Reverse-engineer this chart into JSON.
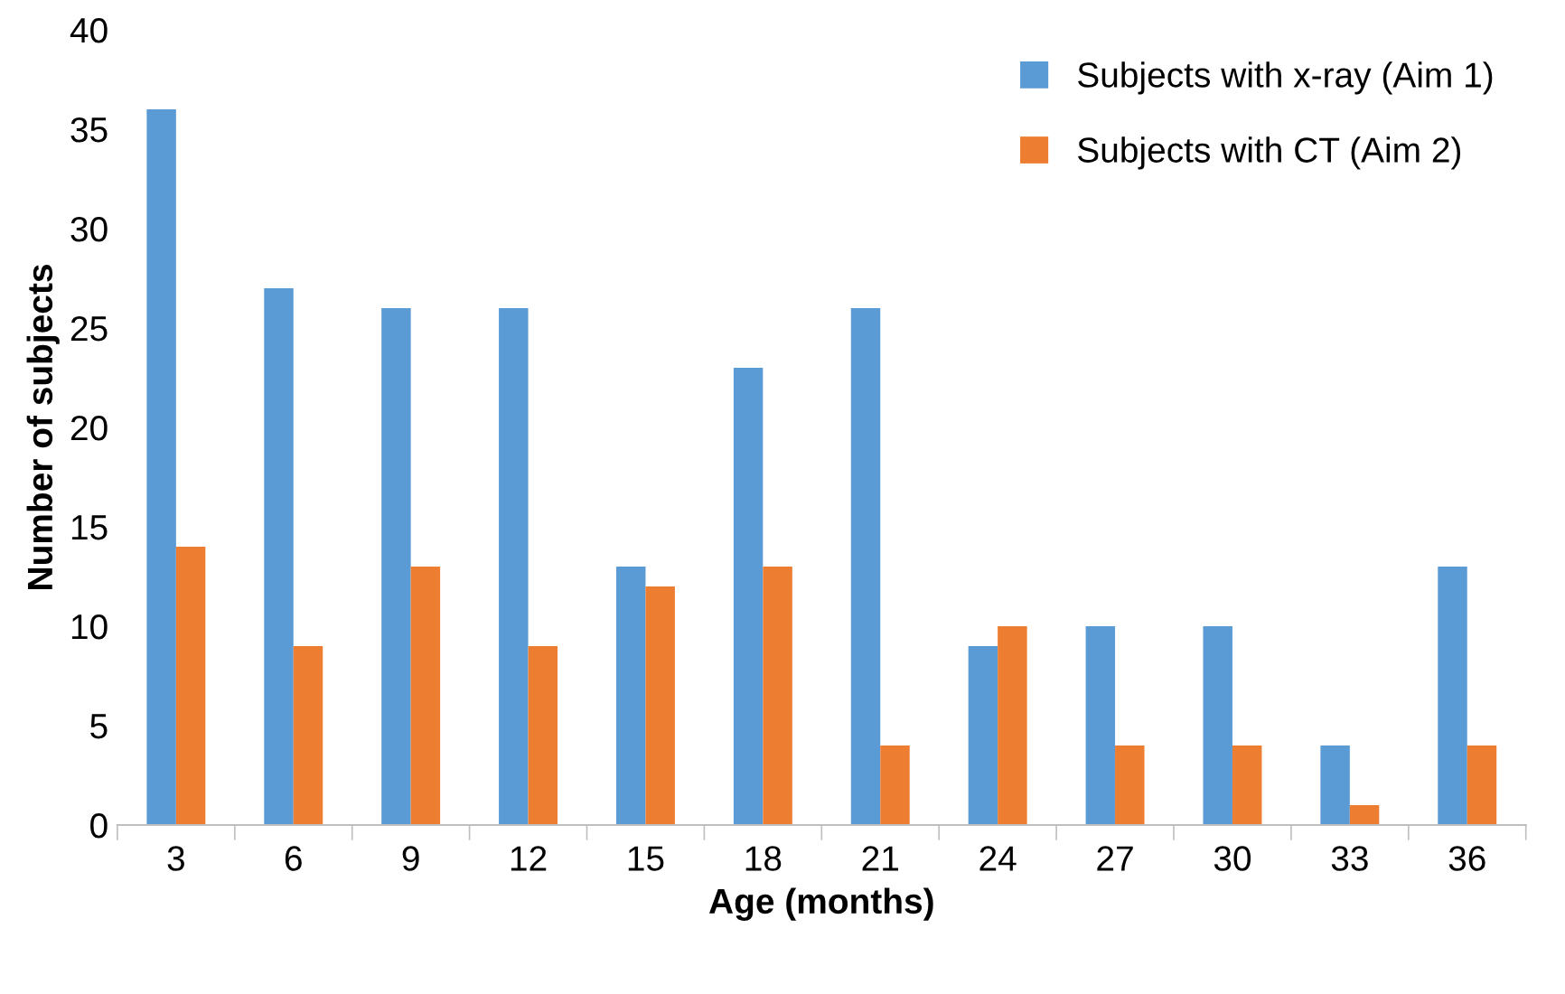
{
  "chart_data": {
    "type": "bar",
    "xlabel": "Age (months)",
    "ylabel": "Number of subjects",
    "categories": [
      "3",
      "6",
      "9",
      "12",
      "15",
      "18",
      "21",
      "24",
      "27",
      "30",
      "33",
      "36"
    ],
    "series": [
      {
        "name": "Subjects with x-ray (Aim 1)",
        "color": "#5b9bd5",
        "values": [
          36,
          27,
          26,
          26,
          13,
          23,
          26,
          9,
          10,
          10,
          4,
          13
        ]
      },
      {
        "name": "Subjects with CT (Aim 2)",
        "color": "#ed7d31",
        "values": [
          14,
          9,
          13,
          9,
          12,
          13,
          4,
          10,
          4,
          4,
          1,
          4
        ]
      }
    ],
    "ylim": [
      0,
      40
    ],
    "yticks": [
      0,
      5,
      10,
      15,
      20,
      25,
      30,
      35,
      40
    ],
    "grid": false,
    "legend": "top right"
  }
}
